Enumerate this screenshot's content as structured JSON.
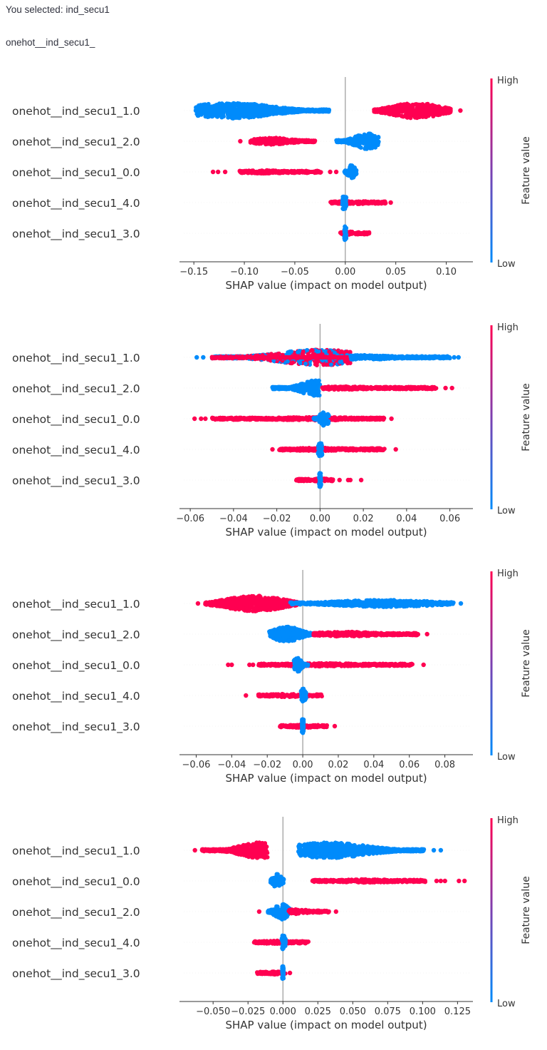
{
  "header": {
    "selected_text": "You selected: ind_secu1",
    "prefix_text": "onehot__ind_secu1_"
  },
  "colors": {
    "high": "#ff0051",
    "low": "#008bfb",
    "mid": "#7c3fb0",
    "axis": "#333333",
    "zero_line": "#999999"
  },
  "chart_data": [
    {
      "type": "scatter",
      "subtype": "shap-beeswarm",
      "title": "",
      "xlabel": "SHAP value (impact on model output)",
      "ylabel": "",
      "xlim": [
        -0.16,
        0.125
      ],
      "xticks": [
        -0.15,
        -0.1,
        -0.05,
        0.0,
        0.05,
        0.1
      ],
      "xtick_labels": [
        "−0.15",
        "−0.10",
        "−0.05",
        "0.00",
        "0.05",
        "0.10"
      ],
      "colorbar": {
        "title": "Feature value",
        "high_label": "High",
        "low_label": "Low"
      },
      "features": [
        {
          "name": "onehot__ind_secu1_1.0",
          "segments": [
            {
              "color": "low",
              "min": -0.148,
              "max": -0.016,
              "peak": -0.113,
              "height": 1.0,
              "outliers": [
                -0.148
              ]
            },
            {
              "color": "high",
              "min": 0.028,
              "max": 0.105,
              "peak": 0.07,
              "height": 1.0,
              "outliers": [
                0.114
              ]
            }
          ]
        },
        {
          "name": "onehot__ind_secu1_2.0",
          "segments": [
            {
              "color": "high",
              "min": -0.094,
              "max": -0.03,
              "peak": -0.073,
              "height": 0.45,
              "outliers": [
                -0.104
              ]
            },
            {
              "color": "low",
              "min": -0.009,
              "max": 0.033,
              "peak": 0.022,
              "height": 1.0,
              "outliers": []
            }
          ]
        },
        {
          "name": "onehot__ind_secu1_0.0",
          "segments": [
            {
              "color": "high",
              "min": -0.105,
              "max": -0.024,
              "peak": -0.08,
              "height": 0.2,
              "outliers": [
                -0.131,
                -0.126,
                -0.119,
                -0.015,
                -0.009
              ]
            },
            {
              "color": "low",
              "min": -0.001,
              "max": 0.011,
              "peak": 0.006,
              "height": 0.9,
              "outliers": []
            }
          ]
        },
        {
          "name": "onehot__ind_secu1_4.0",
          "segments": [
            {
              "color": "high",
              "min": -0.015,
              "max": 0.04,
              "peak": 0.01,
              "height": 0.2,
              "outliers": [
                0.045
              ]
            },
            {
              "color": "low",
              "min": -0.003,
              "max": 0.001,
              "peak": -0.001,
              "height": 0.9,
              "outliers": []
            }
          ]
        },
        {
          "name": "onehot__ind_secu1_3.0",
          "segments": [
            {
              "color": "high",
              "min": -0.005,
              "max": 0.024,
              "peak": 0.005,
              "height": 0.2,
              "outliers": []
            },
            {
              "color": "low",
              "min": -0.001,
              "max": 0.001,
              "peak": 0.0,
              "height": 0.9,
              "outliers": []
            }
          ]
        }
      ]
    },
    {
      "type": "scatter",
      "subtype": "shap-beeswarm",
      "title": "",
      "xlabel": "SHAP value (impact on model output)",
      "ylabel": "",
      "xlim": [
        -0.063,
        0.07
      ],
      "xticks": [
        -0.06,
        -0.04,
        -0.02,
        0.0,
        0.02,
        0.04,
        0.06
      ],
      "xtick_labels": [
        "−0.06",
        "−0.04",
        "−0.02",
        "0.00",
        "0.02",
        "0.04",
        "0.06"
      ],
      "colorbar": {
        "title": "Feature value",
        "high_label": "High",
        "low_label": "Low"
      },
      "features": [
        {
          "name": "onehot__ind_secu1_1.0",
          "segments": [
            {
              "color": "mixed",
              "min": -0.05,
              "max": 0.014,
              "peak": 0.0,
              "height": 1.0,
              "outliers": [
                -0.057,
                -0.054
              ]
            },
            {
              "color": "low",
              "min": 0.014,
              "max": 0.06,
              "peak": 0.02,
              "height": 0.3,
              "outliers": [
                0.062,
                0.064
              ]
            }
          ]
        },
        {
          "name": "onehot__ind_secu1_2.0",
          "segments": [
            {
              "color": "low",
              "min": -0.022,
              "max": 0.0,
              "peak": -0.002,
              "height": 1.0,
              "outliers": []
            },
            {
              "color": "high",
              "min": 0.001,
              "max": 0.054,
              "peak": 0.01,
              "height": 0.2,
              "outliers": [
                0.058,
                0.061
              ]
            }
          ]
        },
        {
          "name": "onehot__ind_secu1_0.0",
          "segments": [
            {
              "color": "high",
              "min": -0.05,
              "max": 0.03,
              "peak": 0.0,
              "height": 0.2,
              "outliers": [
                -0.058,
                -0.055,
                -0.053,
                0.033
              ]
            },
            {
              "color": "low",
              "min": -0.003,
              "max": 0.004,
              "peak": 0.002,
              "height": 0.9,
              "outliers": []
            }
          ]
        },
        {
          "name": "onehot__ind_secu1_4.0",
          "segments": [
            {
              "color": "high",
              "min": -0.019,
              "max": 0.03,
              "peak": 0.0,
              "height": 0.2,
              "outliers": [
                -0.022,
                0.035
              ]
            },
            {
              "color": "low",
              "min": -0.001,
              "max": 0.001,
              "peak": 0.0,
              "height": 0.9,
              "outliers": []
            }
          ]
        },
        {
          "name": "onehot__ind_secu1_3.0",
          "segments": [
            {
              "color": "high",
              "min": -0.011,
              "max": 0.006,
              "peak": 0.0,
              "height": 0.2,
              "outliers": [
                0.009,
                0.013,
                0.014,
                0.019
              ]
            },
            {
              "color": "low",
              "min": -0.0005,
              "max": 0.0005,
              "peak": 0.0,
              "height": 0.9,
              "outliers": []
            }
          ]
        }
      ]
    },
    {
      "type": "scatter",
      "subtype": "shap-beeswarm",
      "title": "",
      "xlabel": "SHAP value (impact on model output)",
      "ylabel": "",
      "xlim": [
        -0.067,
        0.095
      ],
      "xticks": [
        -0.06,
        -0.04,
        -0.02,
        0.0,
        0.02,
        0.04,
        0.06,
        0.08
      ],
      "xtick_labels": [
        "−0.06",
        "−0.04",
        "−0.02",
        "0.00",
        "0.02",
        "0.04",
        "0.06",
        "0.08"
      ],
      "colorbar": {
        "title": "Feature value",
        "high_label": "High",
        "low_label": "Low"
      },
      "features": [
        {
          "name": "onehot__ind_secu1_1.0",
          "segments": [
            {
              "color": "high",
              "min": -0.055,
              "max": -0.003,
              "peak": -0.027,
              "height": 1.0,
              "outliers": [
                -0.059
              ]
            },
            {
              "color": "low",
              "min": -0.007,
              "max": 0.085,
              "peak": 0.046,
              "height": 0.45,
              "outliers": [
                0.089
              ]
            }
          ]
        },
        {
          "name": "onehot__ind_secu1_2.0",
          "segments": [
            {
              "color": "low",
              "min": -0.019,
              "max": 0.006,
              "peak": -0.009,
              "height": 1.0,
              "outliers": []
            },
            {
              "color": "high",
              "min": 0.006,
              "max": 0.065,
              "peak": 0.025,
              "height": 0.3,
              "outliers": [
                0.07
              ]
            }
          ]
        },
        {
          "name": "onehot__ind_secu1_0.0",
          "segments": [
            {
              "color": "high",
              "min": -0.025,
              "max": 0.062,
              "peak": 0.01,
              "height": 0.2,
              "outliers": [
                -0.042,
                -0.04,
                -0.03,
                -0.028,
                0.068
              ]
            },
            {
              "color": "low",
              "min": -0.005,
              "max": 0.003,
              "peak": -0.003,
              "height": 0.9,
              "outliers": []
            }
          ]
        },
        {
          "name": "onehot__ind_secu1_4.0",
          "segments": [
            {
              "color": "high",
              "min": -0.025,
              "max": 0.011,
              "peak": -0.01,
              "height": 0.2,
              "outliers": [
                -0.032
              ]
            },
            {
              "color": "low",
              "min": -0.001,
              "max": 0.002,
              "peak": 0.0,
              "height": 0.9,
              "outliers": []
            }
          ]
        },
        {
          "name": "onehot__ind_secu1_3.0",
          "segments": [
            {
              "color": "high",
              "min": -0.013,
              "max": 0.014,
              "peak": 0.0,
              "height": 0.2,
              "outliers": [
                0.018
              ]
            },
            {
              "color": "low",
              "min": -0.0005,
              "max": 0.0005,
              "peak": 0.0,
              "height": 0.9,
              "outliers": []
            }
          ]
        }
      ]
    },
    {
      "type": "scatter",
      "subtype": "shap-beeswarm",
      "title": "",
      "xlabel": "SHAP value (impact on model output)",
      "ylabel": "",
      "xlim": [
        -0.071,
        0.135
      ],
      "xticks": [
        -0.05,
        -0.025,
        0.0,
        0.025,
        0.05,
        0.075,
        0.1,
        0.125
      ],
      "xtick_labels": [
        "−0.050",
        "−0.025",
        "0.000",
        "0.025",
        "0.050",
        "0.075",
        "0.100",
        "0.125"
      ],
      "colorbar": {
        "title": "Feature value",
        "high_label": "High",
        "low_label": "Low"
      },
      "features": [
        {
          "name": "onehot__ind_secu1_1.0",
          "segments": [
            {
              "color": "high",
              "min": -0.058,
              "max": -0.011,
              "peak": -0.017,
              "height": 1.0,
              "outliers": [
                -0.063
              ]
            },
            {
              "color": "low",
              "min": 0.011,
              "max": 0.101,
              "peak": 0.033,
              "height": 1.0,
              "outliers": [
                0.108,
                0.113
              ]
            }
          ]
        },
        {
          "name": "onehot__ind_secu1_0.0",
          "segments": [
            {
              "color": "low",
              "min": -0.009,
              "max": 0.001,
              "peak": -0.004,
              "height": 0.9,
              "outliers": []
            },
            {
              "color": "high",
              "min": 0.021,
              "max": 0.102,
              "peak": 0.06,
              "height": 0.2,
              "outliers": [
                0.11,
                0.113,
                0.116,
                0.126,
                0.13
              ]
            }
          ]
        },
        {
          "name": "onehot__ind_secu1_2.0",
          "segments": [
            {
              "color": "low",
              "min": -0.011,
              "max": 0.005,
              "peak": -0.001,
              "height": 1.0,
              "outliers": []
            },
            {
              "color": "high",
              "min": 0.004,
              "max": 0.033,
              "peak": 0.01,
              "height": 0.3,
              "outliers": [
                -0.017,
                0.038
              ]
            }
          ]
        },
        {
          "name": "onehot__ind_secu1_4.0",
          "segments": [
            {
              "color": "high",
              "min": -0.021,
              "max": 0.019,
              "peak": -0.005,
              "height": 0.2,
              "outliers": []
            },
            {
              "color": "low",
              "min": -0.001,
              "max": 0.002,
              "peak": 0.0,
              "height": 0.9,
              "outliers": []
            }
          ]
        },
        {
          "name": "onehot__ind_secu1_3.0",
          "segments": [
            {
              "color": "high",
              "min": -0.019,
              "max": 0.002,
              "peak": -0.005,
              "height": 0.2,
              "outliers": [
                0.005
              ]
            },
            {
              "color": "low",
              "min": -0.0005,
              "max": 0.0005,
              "peak": 0.0,
              "height": 0.9,
              "outliers": []
            }
          ]
        }
      ]
    }
  ]
}
